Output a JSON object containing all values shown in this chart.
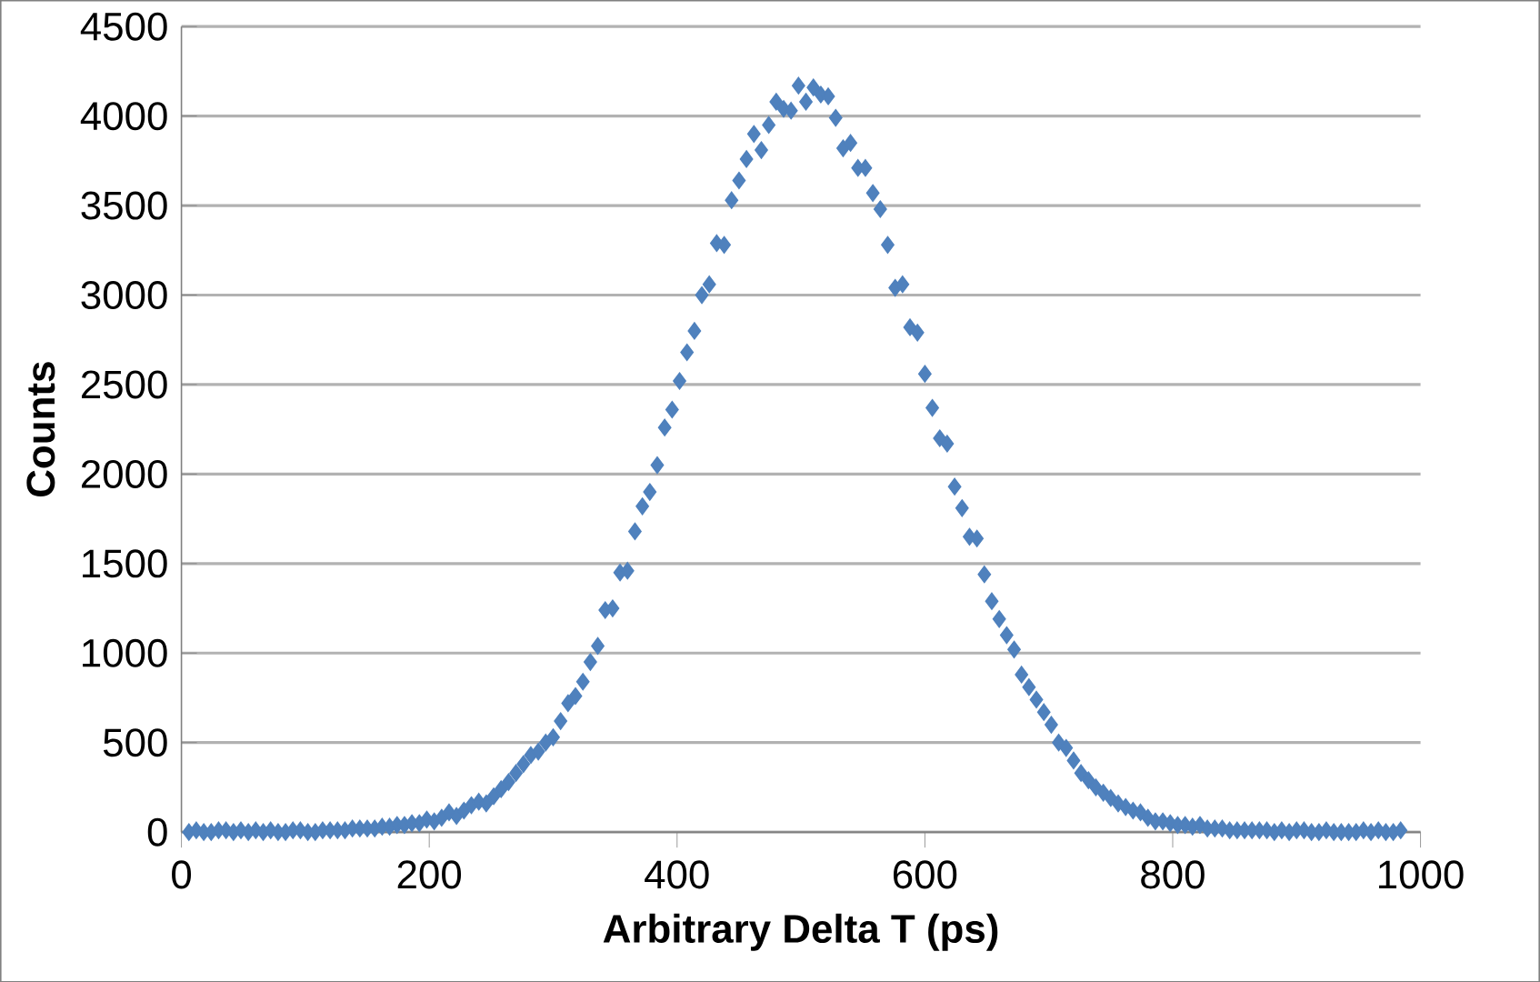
{
  "chart_data": {
    "type": "scatter",
    "xlabel": "Arbitrary Delta T (ps)",
    "ylabel": "Counts",
    "xlim": [
      0,
      1000
    ],
    "ylim": [
      0,
      4500
    ],
    "xticks": [
      0,
      200,
      400,
      600,
      800,
      1000
    ],
    "yticks": [
      0,
      500,
      1000,
      1500,
      2000,
      2500,
      3000,
      3500,
      4000,
      4500
    ],
    "grid": "y",
    "marker": "diamond",
    "series": [
      {
        "color": "#4f81bd",
        "x": [
          6,
          12,
          18,
          24,
          30,
          36,
          42,
          48,
          54,
          60,
          66,
          72,
          78,
          84,
          90,
          96,
          102,
          108,
          114,
          120,
          126,
          132,
          138,
          144,
          150,
          156,
          162,
          168,
          174,
          180,
          186,
          192,
          198,
          204,
          210,
          216,
          222,
          228,
          234,
          240,
          246,
          252,
          258,
          264,
          270,
          276,
          282,
          288,
          294,
          300,
          306,
          312,
          318,
          324,
          330,
          336,
          342,
          348,
          354,
          360,
          366,
          372,
          378,
          384,
          390,
          396,
          402,
          408,
          414,
          420,
          426,
          432,
          438,
          444,
          450,
          456,
          462,
          468,
          474,
          480,
          486,
          492,
          498,
          504,
          510,
          516,
          522,
          528,
          534,
          540,
          546,
          552,
          558,
          564,
          570,
          576,
          582,
          588,
          594,
          600,
          606,
          612,
          618,
          624,
          630,
          636,
          642,
          648,
          654,
          660,
          666,
          672,
          678,
          684,
          690,
          696,
          702,
          708,
          714,
          720,
          726,
          732,
          738,
          744,
          750,
          756,
          762,
          768,
          774,
          780,
          786,
          792,
          798,
          804,
          810,
          816,
          822,
          828,
          834,
          840,
          846,
          852,
          858,
          864,
          870,
          876,
          882,
          888,
          894,
          900,
          906,
          912,
          918,
          924,
          930,
          936,
          942,
          948,
          954,
          960,
          966,
          972,
          978,
          984
        ],
        "values": [
          0,
          10,
          0,
          0,
          10,
          10,
          0,
          10,
          0,
          10,
          0,
          10,
          0,
          0,
          10,
          10,
          0,
          0,
          10,
          10,
          10,
          10,
          20,
          20,
          20,
          20,
          30,
          30,
          40,
          40,
          50,
          50,
          70,
          60,
          80,
          110,
          90,
          120,
          150,
          170,
          160,
          200,
          240,
          280,
          330,
          380,
          430,
          450,
          500,
          530,
          620,
          720,
          760,
          840,
          950,
          1040,
          1240,
          1250,
          1450,
          1460,
          1680,
          1820,
          1900,
          2050,
          2260,
          2360,
          2520,
          2680,
          2800,
          3000,
          3060,
          3290,
          3280,
          3530,
          3640,
          3760,
          3900,
          3810,
          3950,
          4080,
          4040,
          4030,
          4170,
          4080,
          4160,
          4120,
          4110,
          3990,
          3820,
          3850,
          3710,
          3710,
          3570,
          3480,
          3280,
          3040,
          3060,
          2820,
          2790,
          2560,
          2370,
          2200,
          2170,
          1930,
          1810,
          1650,
          1640,
          1440,
          1290,
          1190,
          1100,
          1020,
          880,
          810,
          740,
          670,
          600,
          500,
          470,
          400,
          330,
          290,
          250,
          220,
          190,
          160,
          140,
          120,
          110,
          80,
          60,
          60,
          50,
          40,
          40,
          30,
          40,
          20,
          20,
          20,
          10,
          10,
          10,
          10,
          10,
          10,
          0,
          10,
          0,
          10,
          10,
          0,
          0,
          10,
          0,
          0,
          0,
          0,
          10,
          0,
          10,
          0,
          0,
          10
        ]
      }
    ]
  }
}
